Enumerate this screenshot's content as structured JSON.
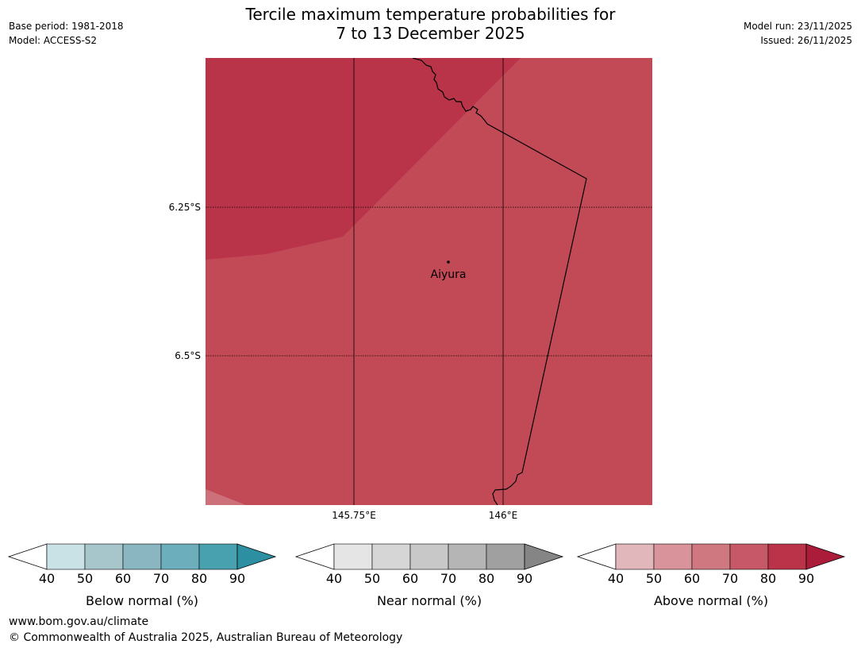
{
  "title": {
    "line1": "Tercile maximum temperature probabilities for",
    "line2": "7 to 13 December 2025"
  },
  "meta_left": {
    "base_period": "Base period: 1981-2018",
    "model": "Model: ACCESS-S2"
  },
  "meta_right": {
    "model_run": "Model run: 23/11/2025",
    "issued": "Issued: 26/11/2025"
  },
  "map": {
    "lat_labels": [
      "6.25°S",
      "6.5°S"
    ],
    "lon_labels": [
      "145.75°E",
      "146°E"
    ],
    "place": "Aiyura",
    "region_colors": {
      "above_80_90": "#b93349",
      "above_70_80": "#c24a57",
      "above_60_70": "#cc7179"
    }
  },
  "colorbars": [
    {
      "label": "Below normal (%)",
      "ticks": [
        "40",
        "50",
        "60",
        "70",
        "80",
        "90"
      ],
      "colors": [
        "#c9e2e6",
        "#a6c6cb",
        "#89b6c1",
        "#6caebc",
        "#48a1ae",
        "#2d90a2"
      ]
    },
    {
      "label": "Near normal (%)",
      "ticks": [
        "40",
        "50",
        "60",
        "70",
        "80",
        "90"
      ],
      "colors": [
        "#e5e5e5",
        "#d6d6d6",
        "#c8c8c8",
        "#b5b5b5",
        "#a0a0a0",
        "#858585"
      ]
    },
    {
      "label": "Above normal (%)",
      "ticks": [
        "40",
        "50",
        "60",
        "70",
        "80",
        "90"
      ],
      "colors": [
        "#e2b7bc",
        "#d9949b",
        "#cf7880",
        "#c65867",
        "#bb3349",
        "#ab1c3a"
      ]
    }
  ],
  "footer": {
    "website": "www.bom.gov.au/climate",
    "copyright": "© Commonwealth of Australia 2025, Australian Bureau of Meteorology"
  }
}
